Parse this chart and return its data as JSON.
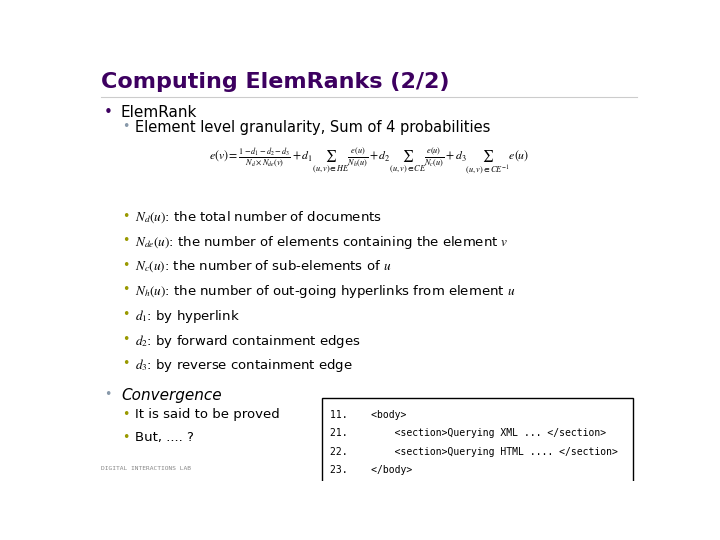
{
  "title": "Computing ElemRanks (2/2)",
  "title_color": "#3D0060",
  "bg_color": "#FFFFFF",
  "bullet_color_dark": "#3D0060",
  "bullet_color_light": "#999900",
  "bullet1": "ElemRank",
  "bullet1_sub": "Element level granularity, Sum of 4 probabilities",
  "sub_bullets": [
    "$N_d(u)$: the total number of documents",
    "$N_{de}(u)$: the number of elements containing the element $v$",
    "$N_c(u)$: the number of sub-elements of $u$",
    "$N_h(u)$: the number of out-going hyperlinks from element $u$",
    "$d_1$: by hyperlink",
    "$d_2$: by forward containment edges",
    "$d_3$: by reverse containment edge"
  ],
  "bullet2": "Convergence",
  "convergence_subs": [
    "It is said to be proved",
    "But, .... ?"
  ],
  "code_box": [
    "11.    <body>",
    "21.        <section>Querying XML ... </section>",
    "22.        <section>Querying HTML .... </section>",
    "23.    </body>"
  ],
  "footer_text": "DIGITAL INTERACTIONS LAB"
}
